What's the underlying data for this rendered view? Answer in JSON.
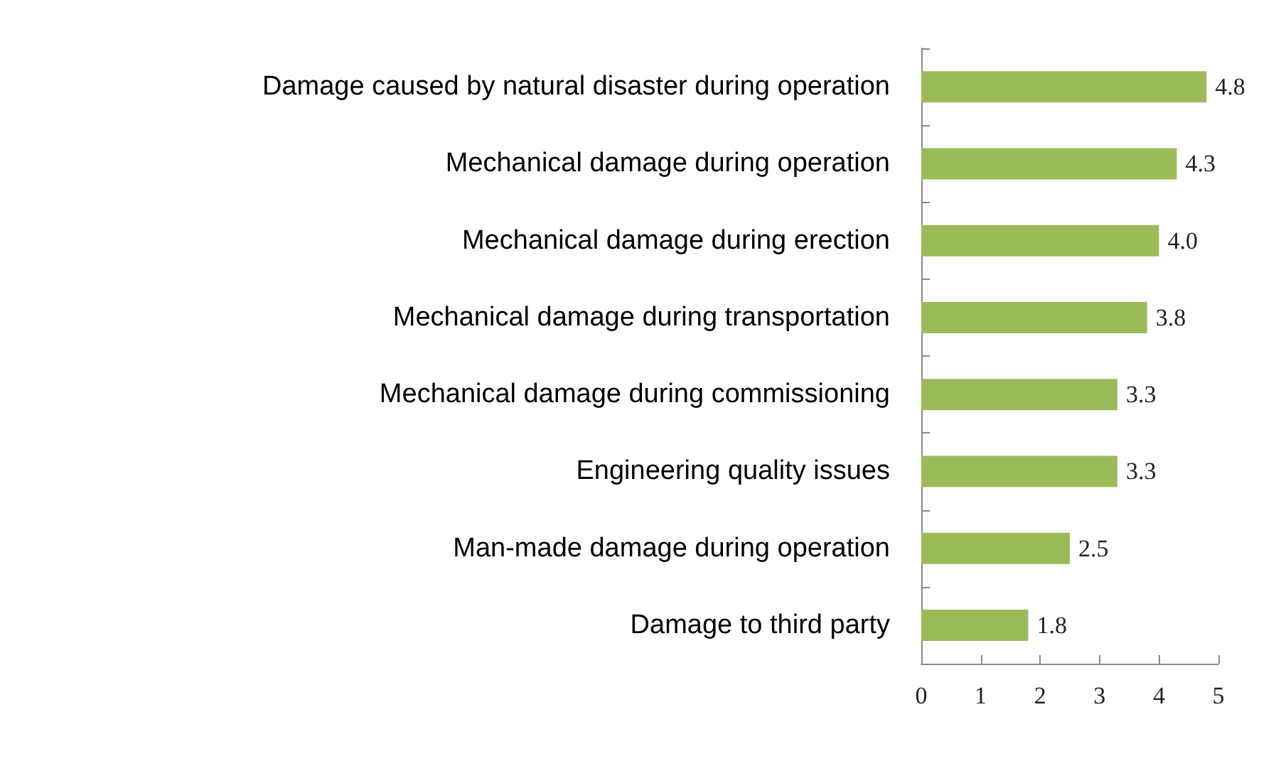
{
  "chart_data": {
    "type": "bar",
    "orientation": "horizontal",
    "categories": [
      "Damage caused by natural disaster during operation",
      "Mechanical damage during operation",
      "Mechanical damage during erection",
      "Mechanical damage during transportation",
      "Mechanical damage during commissioning",
      "Engineering quality issues",
      "Man-made damage during operation",
      "Damage to third party"
    ],
    "values": [
      4.8,
      4.3,
      4.0,
      3.8,
      3.3,
      3.3,
      2.5,
      1.8
    ],
    "value_labels": [
      "4.8",
      "4.3",
      "4.0",
      "3.8",
      "3.3",
      "3.3",
      "2.5",
      "1.8"
    ],
    "color": "#9bbb59",
    "xlim": [
      0,
      5
    ],
    "xticks": [
      0,
      1,
      2,
      3,
      4,
      5
    ],
    "grid": false
  }
}
